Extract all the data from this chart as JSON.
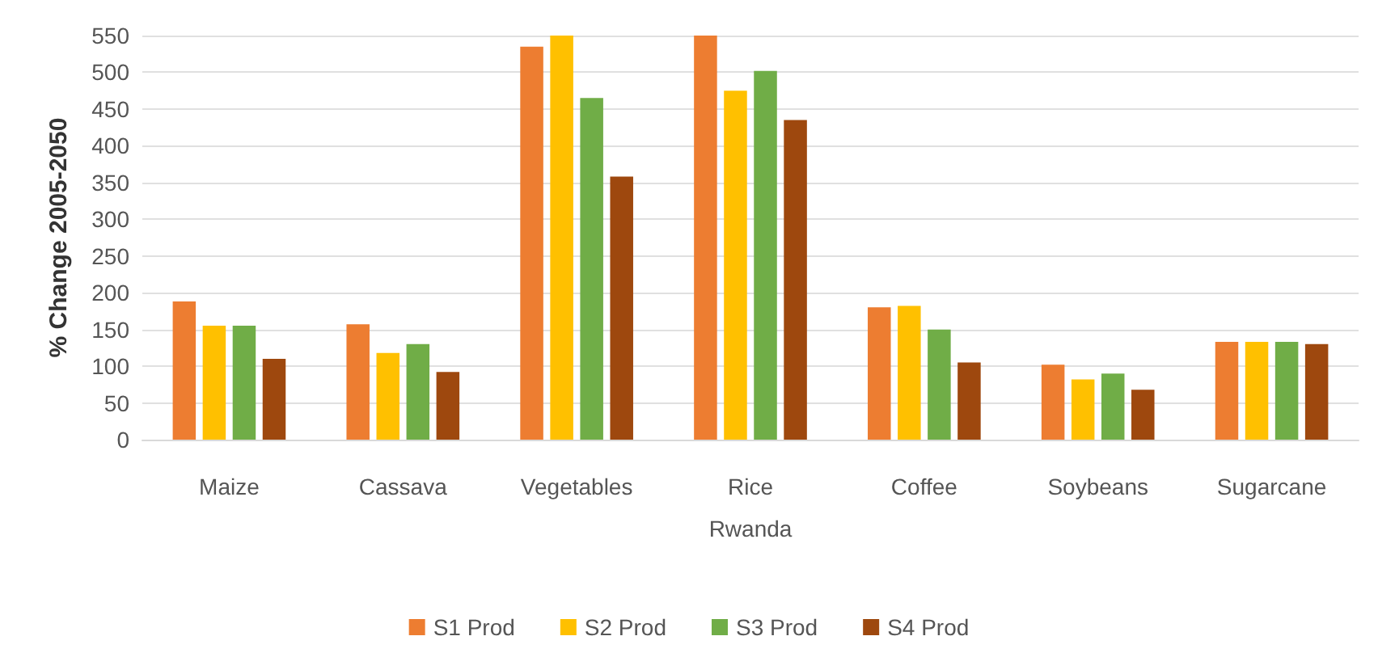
{
  "chart_data": {
    "type": "bar",
    "xlabel": "Rwanda",
    "ylabel": "% Change 2005-2050",
    "categories": [
      "Maize",
      "Cassava",
      "Vegetables",
      "Rice",
      "Coffee",
      "Soybeans",
      "Sugarcane"
    ],
    "series": [
      {
        "name": "S1 Prod",
        "color": "#ed7d31",
        "values": [
          188,
          157,
          535,
          550,
          180,
          102,
          133
        ]
      },
      {
        "name": "S2 Prod",
        "color": "#ffc000",
        "values": [
          155,
          118,
          550,
          475,
          182,
          82,
          133
        ]
      },
      {
        "name": "S3 Prod",
        "color": "#70ad47",
        "values": [
          155,
          130,
          465,
          502,
          150,
          90,
          133
        ]
      },
      {
        "name": "S4 Prod",
        "color": "#9e480e",
        "values": [
          110,
          92,
          358,
          435,
          105,
          68,
          130
        ]
      }
    ],
    "ylim": [
      0,
      550
    ],
    "yticks": [
      0,
      50,
      100,
      150,
      200,
      250,
      300,
      350,
      400,
      450,
      500,
      550
    ],
    "grid": "y",
    "legend": "bottom"
  }
}
